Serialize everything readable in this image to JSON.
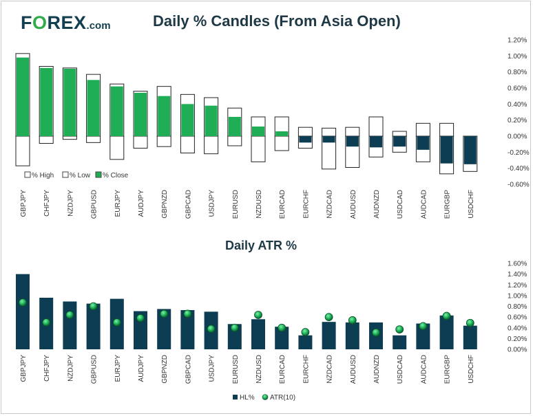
{
  "logo": {
    "prefix": "F",
    "o": "O",
    "suffix": "REX",
    "domain": ".com"
  },
  "colors": {
    "close": "#1fae55",
    "hl": "#0c3d52",
    "atr_dot": "#1db35a",
    "title": "#1e3945",
    "logo_dark": "#123f4f",
    "logo_green": "#2eab4a"
  },
  "chart_data": [
    {
      "type": "candlestick-bar",
      "title": "Daily % Candles (From Asia Open)",
      "categories": [
        "GBPJPY",
        "CHFJPY",
        "NZDJPY",
        "GBPUSD",
        "EURJPY",
        "AUDJPY",
        "GBPNZD",
        "GBPCAD",
        "USDJPY",
        "EURUSD",
        "NZDUSD",
        "EURCAD",
        "EURCHF",
        "NZDCAD",
        "AUDUSD",
        "AUDNZD",
        "USDCAD",
        "AUDCAD",
        "EURGBP",
        "USDCHF"
      ],
      "series": [
        {
          "name": "% High",
          "values": [
            1.03,
            0.87,
            0.85,
            0.77,
            0.65,
            0.56,
            0.62,
            0.52,
            0.48,
            0.35,
            0.24,
            0.24,
            0.11,
            0.1,
            0.11,
            0.24,
            0.06,
            0.16,
            0.16,
            0.0
          ]
        },
        {
          "name": "% Low",
          "values": [
            -0.37,
            -0.09,
            -0.04,
            -0.08,
            -0.29,
            -0.15,
            -0.13,
            -0.21,
            -0.22,
            -0.12,
            -0.32,
            -0.18,
            -0.15,
            -0.41,
            -0.39,
            -0.26,
            -0.2,
            -0.32,
            -0.47,
            -0.44
          ]
        },
        {
          "name": "% Close",
          "values": [
            0.98,
            0.85,
            0.84,
            0.7,
            0.62,
            0.54,
            0.5,
            0.4,
            0.38,
            0.24,
            0.12,
            0.06,
            -0.08,
            -0.08,
            -0.13,
            -0.14,
            -0.13,
            -0.17,
            -0.34,
            -0.35
          ]
        }
      ],
      "legend": [
        "% High",
        "% Low",
        "% Close"
      ],
      "y_ticks": [
        "1.20%",
        "1.00%",
        "0.80%",
        "0.60%",
        "0.40%",
        "0.20%",
        "0.00%",
        "-0.20%",
        "-0.40%",
        "-0.60%"
      ],
      "ylim": [
        -0.6,
        1.2
      ],
      "legend_position": "bottom-left"
    },
    {
      "type": "bar",
      "title": "Daily ATR %",
      "categories": [
        "GBPJPY",
        "CHFJPY",
        "NZDJPY",
        "GBPUSD",
        "EURJPY",
        "AUDJPY",
        "GBPNZD",
        "GBPCAD",
        "USDJPY",
        "EURUSD",
        "NZDUSD",
        "EURCAD",
        "EURCHF",
        "NZDCAD",
        "AUDUSD",
        "AUDNZD",
        "USDCAD",
        "AUDCAD",
        "EURGBP",
        "USDCHF"
      ],
      "series": [
        {
          "name": "HL%",
          "values": [
            1.4,
            0.96,
            0.89,
            0.85,
            0.94,
            0.71,
            0.75,
            0.73,
            0.7,
            0.47,
            0.56,
            0.42,
            0.26,
            0.51,
            0.5,
            0.5,
            0.26,
            0.48,
            0.63,
            0.44
          ]
        },
        {
          "name": "ATR(10)",
          "values": [
            0.87,
            0.5,
            0.64,
            0.8,
            0.5,
            0.58,
            0.66,
            0.66,
            0.38,
            0.4,
            0.64,
            0.4,
            0.32,
            0.6,
            0.54,
            0.31,
            0.37,
            0.43,
            0.62,
            0.49
          ]
        }
      ],
      "legend": [
        "HL%",
        "ATR(10)"
      ],
      "y_ticks": [
        "1.60%",
        "1.40%",
        "1.20%",
        "1.00%",
        "0.80%",
        "0.60%",
        "0.40%",
        "0.20%",
        "0.00%"
      ],
      "ylim": [
        0,
        1.6
      ],
      "legend_position": "bottom-center"
    }
  ]
}
